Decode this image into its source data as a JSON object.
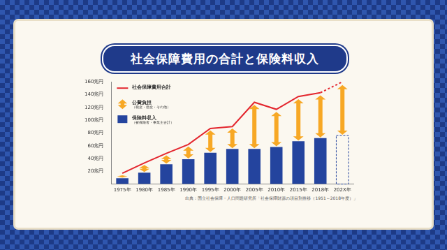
{
  "chart_data": {
    "type": "bar",
    "title": "社会保障費用の合計と保険料収入",
    "source": "出典：国立社会保障・人口問題研究所「社会保障財源の項目別推移（1951～2018年度）」",
    "categories": [
      "1975年",
      "1980年",
      "1985年",
      "1990年",
      "1995年",
      "2000年",
      "2005年",
      "2010年",
      "2015年",
      "2018年",
      "202X年"
    ],
    "series": [
      {
        "name": "社会保障費用合計",
        "type": "line",
        "color": "#e3262e",
        "values": [
          17,
          33,
          48,
          62,
          87,
          90,
          128,
          117,
          137,
          143,
          160
        ]
      },
      {
        "name": "公費負担（税金・借金・その他）",
        "type": "bar",
        "marker": "arrow",
        "color": "#f7a825",
        "values": [
          6,
          13,
          15,
          21,
          36,
          33,
          70,
          56,
          67,
          68,
          80
        ]
      },
      {
        "name": "保険料収入（被保険者・事業主合計）",
        "type": "bar",
        "color": "#24449e",
        "values": [
          9,
          18,
          31,
          39,
          49,
          55,
          55,
          58,
          67,
          72,
          76
        ]
      }
    ],
    "stacked": true,
    "ylim": [
      0,
      160
    ],
    "yticks": [
      {
        "value": 20,
        "label": "20兆円"
      },
      {
        "value": 40,
        "label": "40兆円"
      },
      {
        "value": 60,
        "label": "60兆円"
      },
      {
        "value": 80,
        "label": "80兆円"
      },
      {
        "value": 100,
        "label": "100兆円"
      },
      {
        "value": 120,
        "label": "120兆円"
      },
      {
        "value": 140,
        "label": "140兆円"
      },
      {
        "value": 160,
        "label": "160兆円"
      }
    ],
    "grid": false,
    "legend": "upper left"
  }
}
